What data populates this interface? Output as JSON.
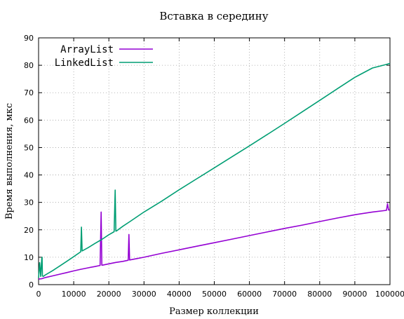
{
  "chart_data": {
    "type": "line",
    "title": "Вставка в середину",
    "xlabel": "Размер коллекции",
    "ylabel": "Время выполнения, мкс",
    "xlim": [
      0,
      100000
    ],
    "ylim": [
      0,
      90
    ],
    "x_ticks": [
      "0",
      "10000",
      "20000",
      "30000",
      "40000",
      "50000",
      "60000",
      "70000",
      "80000",
      "90000",
      "100000"
    ],
    "y_ticks": [
      "0",
      "10",
      "20",
      "30",
      "40",
      "50",
      "60",
      "70",
      "80",
      "90"
    ],
    "grid": true,
    "legend_position": "top-left",
    "series": [
      {
        "name": "ArrayList",
        "color": "#9400d3",
        "x": [
          0,
          400,
          1000,
          2000,
          4000,
          6000,
          8000,
          10000,
          12000,
          14000,
          16000,
          17500,
          17800,
          18000,
          18200,
          20000,
          22000,
          24000,
          25500,
          25700,
          25900,
          28000,
          30000,
          35000,
          40000,
          45000,
          50000,
          55000,
          60000,
          65000,
          70000,
          75000,
          80000,
          85000,
          90000,
          95000,
          99000,
          99300,
          99600,
          100000
        ],
        "y": [
          2.0,
          2.1,
          2.2,
          2.6,
          3.2,
          3.8,
          4.4,
          5.0,
          5.6,
          6.1,
          6.6,
          7.0,
          26.5,
          7.1,
          7.1,
          7.6,
          8.1,
          8.5,
          8.9,
          18.3,
          9.0,
          9.5,
          10.0,
          11.4,
          12.7,
          14.0,
          15.3,
          16.6,
          17.9,
          19.2,
          20.5,
          21.7,
          23.0,
          24.3,
          25.5,
          26.5,
          27.1,
          29.5,
          27.2,
          27.3
        ]
      },
      {
        "name": "LinkedList",
        "color": "#009e73",
        "x": [
          0,
          300,
          600,
          900,
          1000,
          1100,
          1300,
          2000,
          4000,
          6000,
          8000,
          10000,
          12000,
          12200,
          12400,
          14000,
          16000,
          18000,
          20000,
          21500,
          21800,
          22000,
          22200,
          24000,
          26000,
          30000,
          35000,
          40000,
          45000,
          50000,
          55000,
          60000,
          65000,
          70000,
          75000,
          80000,
          85000,
          90000,
          95000,
          99000,
          100000
        ],
        "y": [
          2.5,
          8.0,
          3.0,
          9.5,
          10.0,
          3.2,
          3.0,
          3.6,
          5.1,
          6.8,
          8.5,
          10.2,
          12.0,
          21.0,
          12.3,
          13.4,
          15.0,
          16.5,
          18.2,
          19.3,
          34.5,
          19.5,
          19.6,
          21.3,
          23.0,
          26.5,
          30.4,
          34.6,
          38.6,
          42.6,
          46.6,
          50.6,
          54.7,
          58.8,
          63.0,
          67.2,
          71.4,
          75.6,
          79.0,
          80.3,
          80.7
        ]
      }
    ]
  }
}
